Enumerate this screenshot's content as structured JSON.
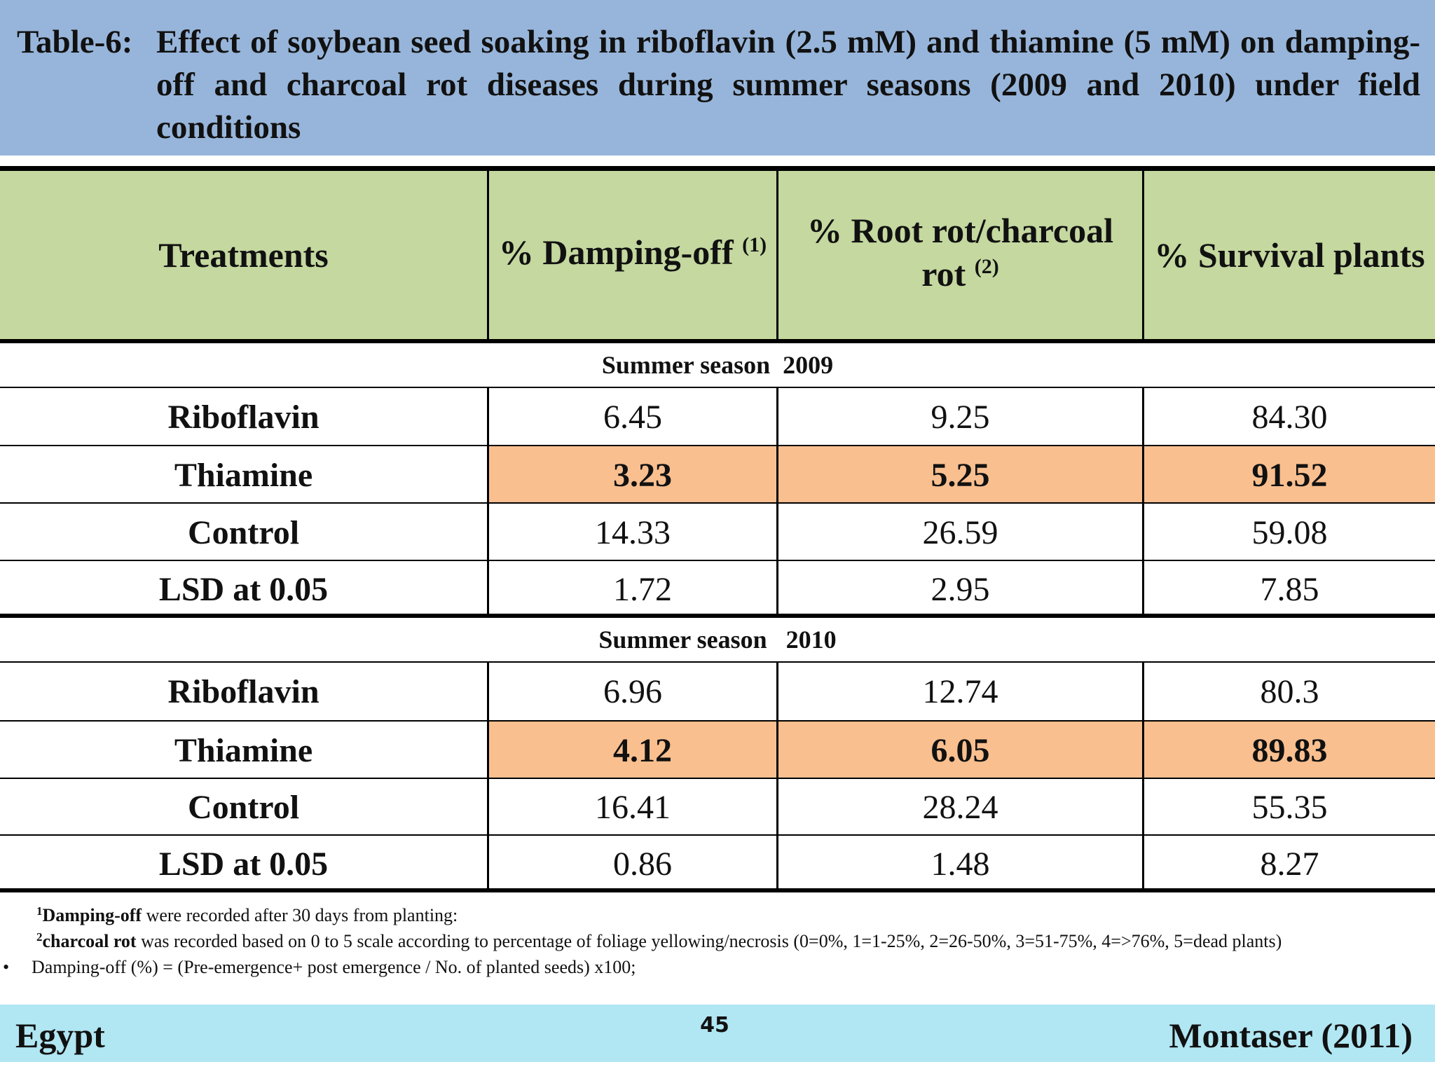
{
  "title": {
    "label": "Table-6:",
    "text": "Effect of soybean seed soaking in riboflavin (2.5 mM) and thiamine (5 mM) on damping-off and charcoal rot diseases during summer seasons (2009 and 2010) under field conditions"
  },
  "table": {
    "headers": {
      "treatments": "Treatments",
      "damping_off": "% Damping-off",
      "damping_off_note": "(1)",
      "root_rot": "% Root rot/charcoal rot",
      "root_rot_note": "(2)",
      "survival": "% Survival plants"
    },
    "seasons": [
      {
        "label": "Summer season  2009",
        "rows": [
          {
            "treatment": "Riboflavin",
            "damping": "6.45",
            "rootrot": "9.25",
            "survival": "84.30"
          },
          {
            "treatment": "Thiamine",
            "damping": "3.23",
            "rootrot": "5.25",
            "survival": "91.52"
          },
          {
            "treatment": "Control",
            "damping": "14.33",
            "rootrot": "26.59",
            "survival": "59.08"
          },
          {
            "treatment": "LSD at 0.05",
            "damping": "1.72",
            "rootrot": "2.95",
            "survival": "7.85"
          }
        ]
      },
      {
        "label": "Summer season   2010",
        "rows": [
          {
            "treatment": "Riboflavin",
            "damping": "6.96",
            "rootrot": "12.74",
            "survival": "80.3"
          },
          {
            "treatment": "Thiamine",
            "damping": "4.12",
            "rootrot": "6.05",
            "survival": "89.83"
          },
          {
            "treatment": "Control",
            "damping": "16.41",
            "rootrot": "28.24",
            "survival": "55.35"
          },
          {
            "treatment": "LSD at 0.05",
            "damping": "0.86",
            "rootrot": "1.48",
            "survival": "8.27"
          }
        ]
      }
    ],
    "highlight_color": "#f9bf8f"
  },
  "footnotes": {
    "n1_mark": "1",
    "n1_bold": "Damping-off",
    "n1_text": " were recorded after 30 days from planting:",
    "n2_mark": "2",
    "n2_bold": "charcoal rot",
    "n2_text": " was recorded based on 0 to 5 scale according to percentage of foliage yellowing/necrosis (0=0%, 1=1-25%, 2=26-50%, 3=51-75%, 4=>76%, 5=dead plants)",
    "bullet_symbol": "•",
    "bullet_text": "Damping-off (%) = (Pre-emergence+ post emergence / No. of planted seeds) x100;"
  },
  "footer": {
    "left": "Egypt",
    "page": "45",
    "right": "Montaser (2011)"
  },
  "colors": {
    "title_bg": "#97b5da",
    "header_bg": "#c4d89f",
    "footer_bg": "#b1e6f3"
  }
}
